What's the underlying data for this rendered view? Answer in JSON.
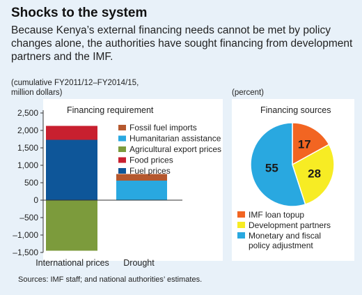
{
  "title": "Shocks to the system",
  "subtitle": "Because Kenya’s external financing needs cannot be met by policy changes alone, the authorities have sought financing from development partners and the IMF.",
  "left_note_line1": "(cumulative FY2011/12–FY2014/15,",
  "left_note_line2": "million dollars)",
  "right_note": "(percent)",
  "source": "Sources: IMF staff; and national authorities’ estimates.",
  "chart_data": [
    {
      "type": "bar",
      "stacked": true,
      "title": "Financing requirement",
      "categories": [
        "International prices",
        "Drought"
      ],
      "ylim": [
        -1500,
        2500
      ],
      "yticks": [
        2500,
        2000,
        1500,
        1000,
        500,
        0,
        -500,
        -1000,
        -1500
      ],
      "ytick_labels": [
        "2,500",
        "2,000",
        "1,500",
        "1,000",
        "500",
        "0",
        "–500",
        "–1,000",
        "–1,500"
      ],
      "series": [
        {
          "name": "Fossil fuel imports",
          "color": "#b5582e",
          "values": [
            0,
            0
          ]
        },
        {
          "name": "Humanitarian assistance",
          "color": "#29a8e0",
          "values": [
            0,
            560
          ]
        },
        {
          "name": "Agricultural export prices",
          "color": "#7c9b3c",
          "values": [
            -1450,
            0
          ]
        },
        {
          "name": "Food prices",
          "color": "#c8202f",
          "values": [
            400,
            0
          ]
        },
        {
          "name": "Fuel prices",
          "color": "#0e5699",
          "values": [
            1730,
            0
          ]
        }
      ],
      "drought_top_segment": {
        "color": "#b5582e",
        "value": 190
      },
      "legend": "top-right"
    },
    {
      "type": "pie",
      "title": "Financing sources",
      "slices": [
        {
          "name": "IMF loan topup",
          "value": 17,
          "color": "#f26522"
        },
        {
          "name": "Development partners",
          "value": 28,
          "color": "#f7ec24"
        },
        {
          "name": "Monetary and fiscal policy adjustment",
          "value": 55,
          "color": "#29a8e0"
        }
      ],
      "legend_lines": [
        [
          "IMF loan topup"
        ],
        [
          "Development partners"
        ],
        [
          "Monetary and fiscal",
          "policy adjustment"
        ]
      ]
    }
  ]
}
